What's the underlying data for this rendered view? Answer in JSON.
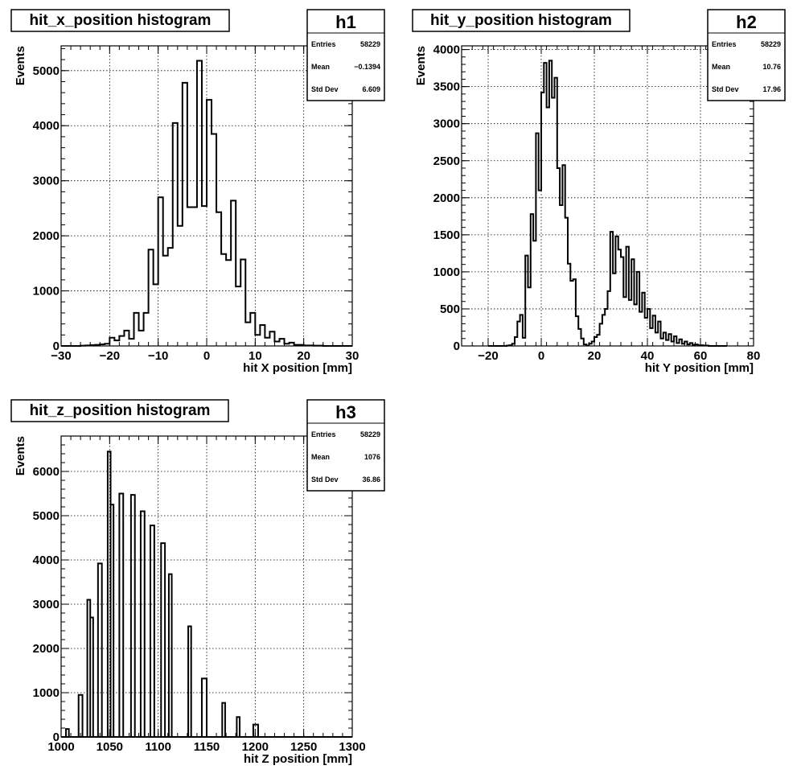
{
  "chart_data": [
    {
      "type": "bar",
      "title": "hit_x_position histogram",
      "xlabel": "hit X position [mm]",
      "ylabel": "Events",
      "xlim": [
        -30,
        30
      ],
      "ylim": [
        0,
        5450
      ],
      "xticks": [
        -30,
        -20,
        -10,
        0,
        10,
        20,
        30
      ],
      "yticks": [
        0,
        1000,
        2000,
        3000,
        4000,
        5000
      ],
      "xtick_labels": [
        "−30",
        "−20",
        "−10",
        "0",
        "10",
        "20",
        "30"
      ],
      "ytick_labels": [
        "0",
        "1000",
        "2000",
        "3000",
        "4000",
        "5000"
      ],
      "grid": true,
      "stats": {
        "name": "h1",
        "entries_label": "Entries",
        "entries": "58229",
        "mean_label": "Mean",
        "mean": "−0.1394",
        "std_label": "Std Dev",
        "std": "6.609"
      },
      "bin_start": -30,
      "bin_width": 1,
      "values": [
        0,
        0,
        0,
        0,
        5,
        10,
        15,
        20,
        30,
        40,
        150,
        100,
        180,
        280,
        130,
        600,
        280,
        600,
        1750,
        1120,
        2700,
        1640,
        1780,
        4050,
        2180,
        4780,
        2520,
        2520,
        5180,
        2540,
        4470,
        3850,
        2430,
        1670,
        1560,
        2640,
        1080,
        1570,
        430,
        600,
        200,
        380,
        150,
        260,
        80,
        130,
        40,
        60,
        20,
        20,
        10,
        10,
        5,
        5,
        0,
        0,
        0,
        0,
        0,
        0
      ]
    },
    {
      "type": "bar",
      "title": "hit_y_position histogram",
      "xlabel": "hit Y position [mm]",
      "ylabel": "Events",
      "xlim": [
        -30,
        80
      ],
      "ylim": [
        0,
        4050
      ],
      "xticks": [
        -20,
        0,
        20,
        40,
        60,
        80
      ],
      "yticks": [
        0,
        500,
        1000,
        1500,
        2000,
        2500,
        3000,
        3500,
        4000
      ],
      "xtick_labels": [
        "−20",
        "0",
        "20",
        "40",
        "60",
        "80"
      ],
      "ytick_labels": [
        "0",
        "500",
        "1000",
        "1500",
        "2000",
        "2500",
        "3000",
        "3500",
        "4000"
      ],
      "grid": true,
      "stats": {
        "name": "h2",
        "entries_label": "Entries",
        "entries": "58229",
        "mean_label": "Mean",
        "mean": "10.76",
        "std_label": "Std Dev",
        "std": "17.96"
      },
      "bin_start": -20,
      "bin_width": 1,
      "values": [
        0,
        0,
        0,
        0,
        0,
        0,
        0,
        5,
        10,
        30,
        120,
        330,
        420,
        110,
        1220,
        790,
        1780,
        1420,
        2870,
        2100,
        3420,
        3820,
        3220,
        3850,
        3350,
        3620,
        2400,
        1900,
        2440,
        1730,
        1110,
        880,
        900,
        400,
        230,
        100,
        20,
        5,
        30,
        60,
        120,
        150,
        300,
        420,
        500,
        740,
        1540,
        980,
        1480,
        1300,
        1200,
        660,
        1340,
        620,
        1170,
        560,
        1000,
        460,
        720,
        380,
        500,
        240,
        410,
        180,
        330,
        100,
        180,
        80,
        160,
        60,
        130,
        40,
        90,
        30,
        60,
        20,
        40,
        15,
        20,
        10,
        10,
        5,
        5,
        0,
        0,
        0,
        0,
        0,
        0,
        0
      ]
    },
    {
      "type": "bar",
      "title": "hit_z_position histogram",
      "xlabel": "hit Z position [mm]",
      "ylabel": "Events",
      "xlim": [
        1000,
        1300
      ],
      "ylim": [
        0,
        6800
      ],
      "xticks": [
        1000,
        1050,
        1100,
        1150,
        1200,
        1250,
        1300
      ],
      "yticks": [
        0,
        1000,
        2000,
        3000,
        4000,
        5000,
        6000
      ],
      "xtick_labels": [
        "1000",
        "1050",
        "1100",
        "1150",
        "1200",
        "1250",
        "1300"
      ],
      "ytick_labels": [
        "0",
        "1000",
        "2000",
        "3000",
        "4000",
        "5000",
        "6000"
      ],
      "grid": true,
      "stats": {
        "name": "h3",
        "entries_label": "Entries",
        "entries": "58229",
        "mean_label": "Mean",
        "mean": "1076",
        "std_label": "Std Dev",
        "std": "36.86"
      },
      "bars": [
        {
          "x0": 1005,
          "x1": 1008,
          "v": 180
        },
        {
          "x0": 1018,
          "x1": 1022,
          "v": 950
        },
        {
          "x0": 1027,
          "x1": 1030,
          "v": 3100
        },
        {
          "x0": 1030,
          "x1": 1033,
          "v": 2700
        },
        {
          "x0": 1038,
          "x1": 1042,
          "v": 3920
        },
        {
          "x0": 1048,
          "x1": 1051,
          "v": 6450
        },
        {
          "x0": 1051,
          "x1": 1054,
          "v": 5250
        },
        {
          "x0": 1060,
          "x1": 1064,
          "v": 5500
        },
        {
          "x0": 1072,
          "x1": 1076,
          "v": 5470
        },
        {
          "x0": 1082,
          "x1": 1086,
          "v": 5100
        },
        {
          "x0": 1092,
          "x1": 1096,
          "v": 4780
        },
        {
          "x0": 1103,
          "x1": 1107,
          "v": 4380
        },
        {
          "x0": 1111,
          "x1": 1114,
          "v": 3680
        },
        {
          "x0": 1131,
          "x1": 1134,
          "v": 2500
        },
        {
          "x0": 1145,
          "x1": 1150,
          "v": 1320
        },
        {
          "x0": 1166,
          "x1": 1169,
          "v": 770
        },
        {
          "x0": 1181,
          "x1": 1184,
          "v": 450
        },
        {
          "x0": 1198,
          "x1": 1203,
          "v": 280
        }
      ]
    }
  ]
}
